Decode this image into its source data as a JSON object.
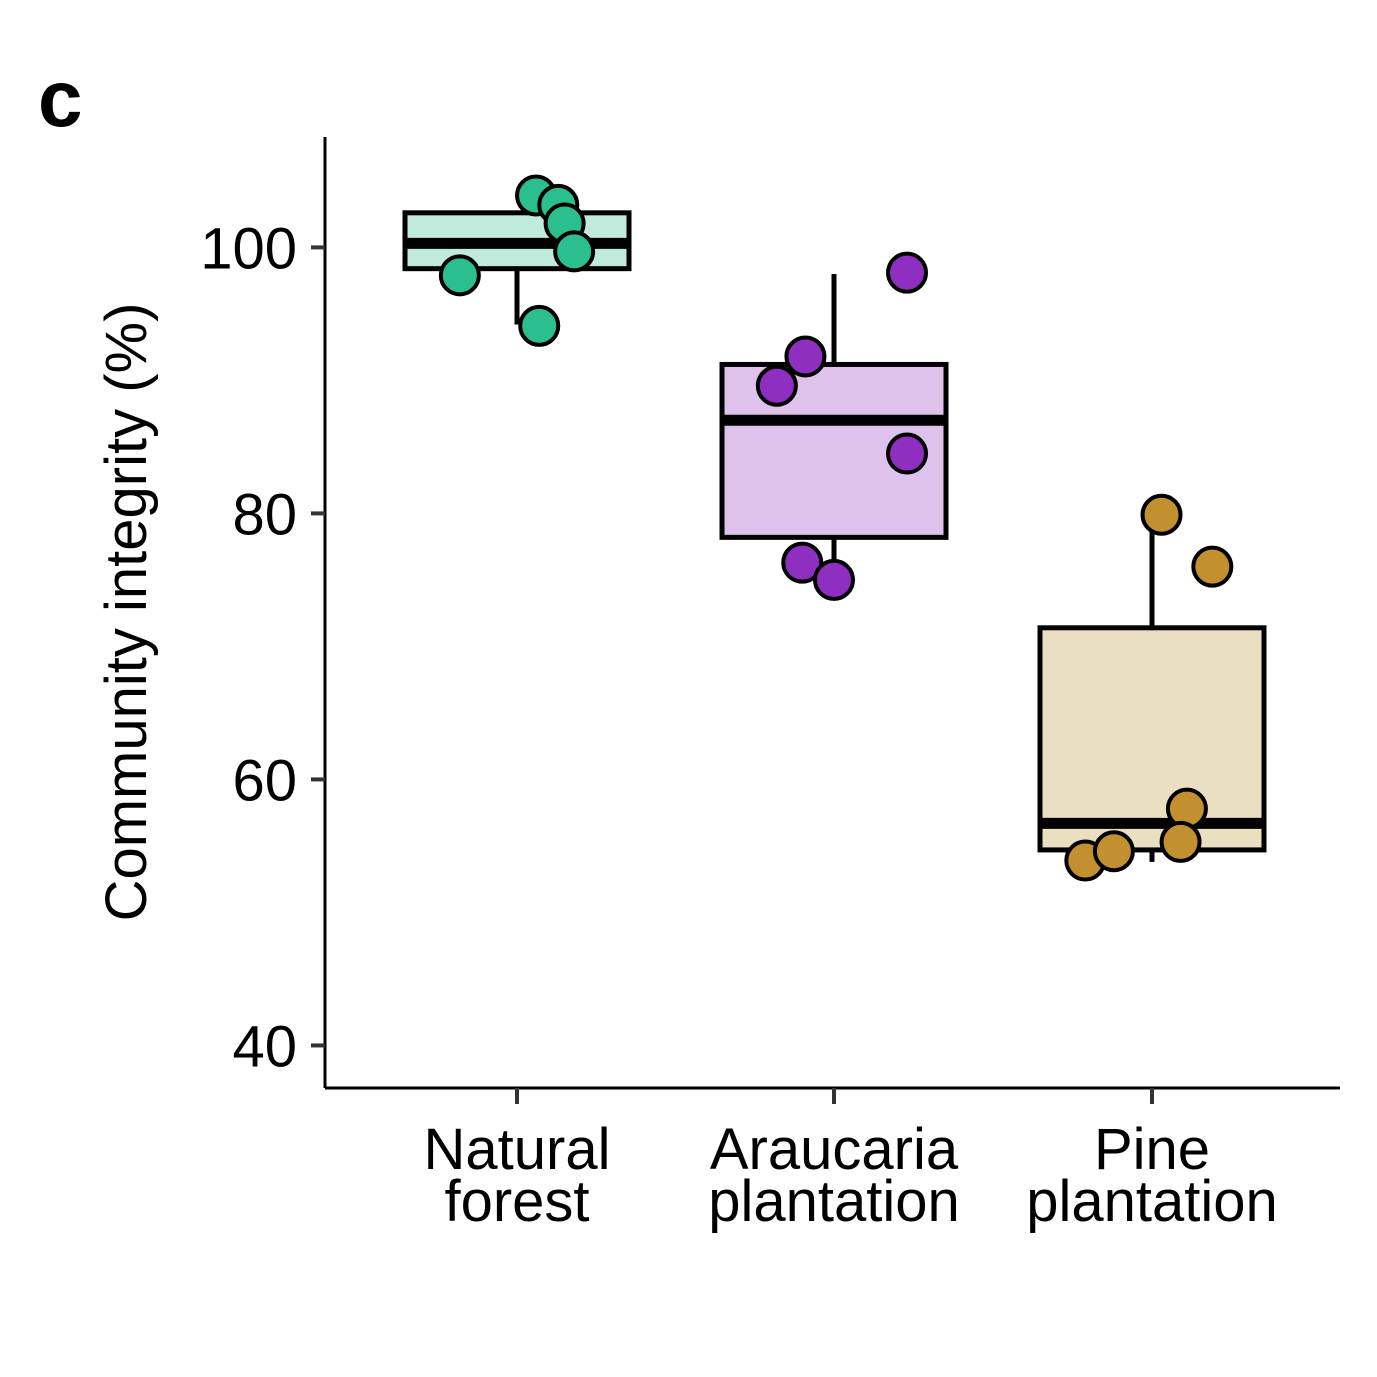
{
  "panel_label": "c",
  "chart_data": {
    "type": "box",
    "title": "",
    "xlabel": "",
    "ylabel": "Community integrity (%)",
    "ylim": [
      36.8,
      108.3
    ],
    "yticks": [
      40,
      60,
      80,
      100
    ],
    "grid": false,
    "legend": "none",
    "categories": [
      {
        "label_lines": [
          "Natural",
          "forest"
        ]
      },
      {
        "label_lines": [
          "Araucaria",
          "plantation"
        ]
      },
      {
        "label_lines": [
          "Pine",
          "plantation"
        ]
      }
    ],
    "series": [
      {
        "fill": "#c0eadb",
        "point_color": "#2bbf8f",
        "box": {
          "whisker_low": 94.2,
          "q1": 98.4,
          "median": 100.3,
          "q3": 102.6,
          "whisker_high": 102.6
        },
        "points": [
          {
            "x_offset": -0.18,
            "y": 97.9
          },
          {
            "x_offset": 0.06,
            "y": 103.9
          },
          {
            "x_offset": 0.13,
            "y": 103.2
          },
          {
            "x_offset": 0.15,
            "y": 101.8
          },
          {
            "x_offset": 0.18,
            "y": 99.7
          },
          {
            "x_offset": 0.07,
            "y": 94.1
          }
        ]
      },
      {
        "fill": "#dfc2eb",
        "point_color": "#8f2fc2",
        "box": {
          "whisker_low": 75.5,
          "q1": 78.2,
          "median": 87.0,
          "q3": 91.2,
          "whisker_high": 98.0
        },
        "points": [
          {
            "x_offset": 0.23,
            "y": 98.1
          },
          {
            "x_offset": -0.09,
            "y": 91.8
          },
          {
            "x_offset": -0.18,
            "y": 89.6
          },
          {
            "x_offset": 0.23,
            "y": 84.5
          },
          {
            "x_offset": -0.1,
            "y": 76.3
          },
          {
            "x_offset": 0.0,
            "y": 75.0
          }
        ]
      },
      {
        "fill": "#ebdfc2",
        "point_color": "#c2902f",
        "box": {
          "whisker_low": 53.8,
          "q1": 54.7,
          "median": 56.7,
          "q3": 71.4,
          "whisker_high": 80.0
        },
        "points": [
          {
            "x_offset": 0.03,
            "y": 79.9
          },
          {
            "x_offset": 0.19,
            "y": 76.0
          },
          {
            "x_offset": 0.11,
            "y": 57.8
          },
          {
            "x_offset": 0.09,
            "y": 55.3
          },
          {
            "x_offset": -0.21,
            "y": 53.9
          },
          {
            "x_offset": -0.12,
            "y": 54.6
          }
        ]
      }
    ]
  }
}
